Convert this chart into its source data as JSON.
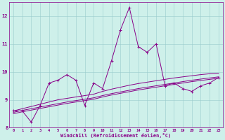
{
  "x": [
    0,
    1,
    2,
    3,
    4,
    5,
    6,
    7,
    8,
    9,
    10,
    11,
    12,
    13,
    14,
    15,
    16,
    17,
    18,
    19,
    20,
    21,
    22,
    23
  ],
  "y_main": [
    8.6,
    8.6,
    8.2,
    8.8,
    9.6,
    9.7,
    9.9,
    9.7,
    8.8,
    9.6,
    9.4,
    10.4,
    11.5,
    12.3,
    10.9,
    10.7,
    11.0,
    9.5,
    9.6,
    9.4,
    9.3,
    9.5,
    9.6,
    9.8
  ],
  "y_line1": [
    8.6,
    8.68,
    8.76,
    8.84,
    8.92,
    9.0,
    9.05,
    9.1,
    9.15,
    9.2,
    9.3,
    9.38,
    9.45,
    9.52,
    9.58,
    9.63,
    9.68,
    9.73,
    9.78,
    9.82,
    9.86,
    9.9,
    9.93,
    9.95
  ],
  "y_line2": [
    8.55,
    8.62,
    8.68,
    8.74,
    8.8,
    8.86,
    8.92,
    8.97,
    9.02,
    9.07,
    9.15,
    9.22,
    9.28,
    9.34,
    9.4,
    9.45,
    9.5,
    9.55,
    9.6,
    9.65,
    9.7,
    9.74,
    9.78,
    9.82
  ],
  "y_line3": [
    8.5,
    8.57,
    8.63,
    8.69,
    8.75,
    8.81,
    8.87,
    8.92,
    8.97,
    9.02,
    9.1,
    9.17,
    9.23,
    9.29,
    9.35,
    9.4,
    9.45,
    9.5,
    9.55,
    9.6,
    9.65,
    9.69,
    9.73,
    9.77
  ],
  "xlim": [
    -0.5,
    23.5
  ],
  "ylim": [
    8.0,
    12.5
  ],
  "yticks": [
    8,
    9,
    10,
    11,
    12
  ],
  "xticks": [
    0,
    1,
    2,
    3,
    4,
    5,
    6,
    7,
    8,
    9,
    10,
    11,
    12,
    13,
    14,
    15,
    16,
    17,
    18,
    19,
    20,
    21,
    22,
    23
  ],
  "xlabel": "Windchill (Refroidissement éolien,°C)",
  "line_color": "#880088",
  "bg_color": "#cef0ea",
  "grid_color": "#99cccc"
}
